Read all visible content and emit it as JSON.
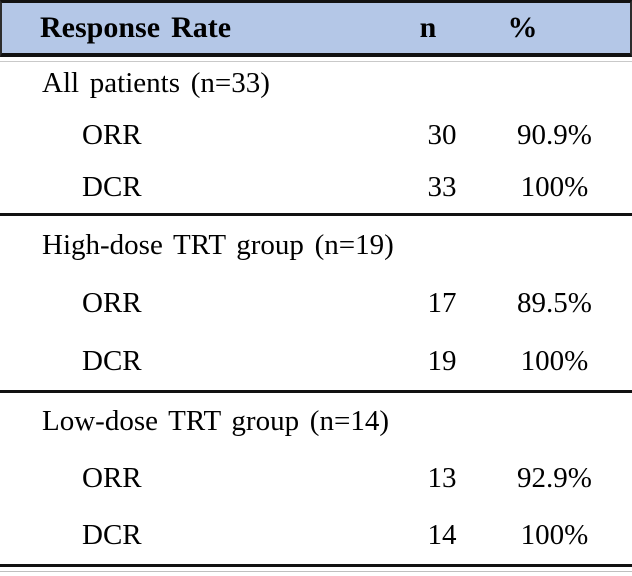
{
  "table": {
    "header_bg": "#b4c7e7",
    "border_color": "#121212",
    "header": {
      "label": "Response Rate",
      "n": "n",
      "pct": "%"
    },
    "sections": [
      {
        "title": "All patients (n=33)",
        "rows": [
          {
            "label": "ORR",
            "n": "30",
            "pct": "90.9%"
          },
          {
            "label": "DCR",
            "n": "33",
            "pct": "100%"
          }
        ]
      },
      {
        "title": "High-dose TRT group (n=19)",
        "rows": [
          {
            "label": "ORR",
            "n": "17",
            "pct": "89.5%"
          },
          {
            "label": "DCR",
            "n": "19",
            "pct": "100%"
          }
        ]
      },
      {
        "title": "Low-dose TRT group (n=14)",
        "rows": [
          {
            "label": "ORR",
            "n": "13",
            "pct": "92.9%"
          },
          {
            "label": "DCR",
            "n": "14",
            "pct": "100%"
          }
        ]
      }
    ]
  },
  "chart_data": {
    "type": "table",
    "columns": [
      "Response Rate",
      "n",
      "%"
    ],
    "rows": [
      [
        "All patients (n=33)",
        "",
        ""
      ],
      [
        "ORR",
        "30",
        "90.9%"
      ],
      [
        "DCR",
        "33",
        "100%"
      ],
      [
        "High-dose TRT group (n=19)",
        "",
        ""
      ],
      [
        "ORR",
        "17",
        "89.5%"
      ],
      [
        "DCR",
        "19",
        "100%"
      ],
      [
        "Low-dose TRT group (n=14)",
        "",
        ""
      ],
      [
        "ORR",
        "13",
        "92.9%"
      ],
      [
        "DCR",
        "14",
        "100%"
      ]
    ]
  }
}
